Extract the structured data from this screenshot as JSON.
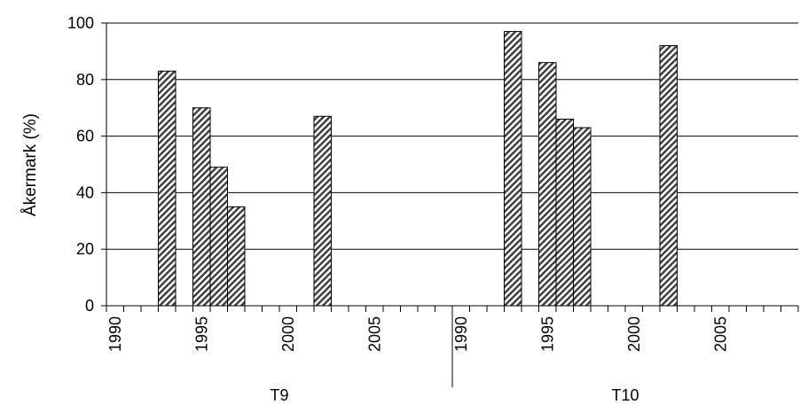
{
  "chart_data": {
    "type": "bar",
    "ylabel": "Åkermark (%)",
    "ylim": [
      0,
      100
    ],
    "yticks": [
      0,
      20,
      40,
      60,
      80,
      100
    ],
    "grid": "horizontal",
    "bar_pattern": "diagonal-hatch",
    "colors": {
      "bar_fill": "#ffffff",
      "hatch": "#3a3a3a",
      "outline": "#000000",
      "grid": "#000000"
    },
    "x_year_range": [
      1990,
      2009
    ],
    "year_tick_labels": [
      "1990",
      "1995",
      "2000",
      "2005"
    ],
    "groups": [
      {
        "name": "T9",
        "bars": [
          {
            "year": 1993,
            "value": 83
          },
          {
            "year": 1995,
            "value": 70
          },
          {
            "year": 1996,
            "value": 49
          },
          {
            "year": 1997,
            "value": 35
          },
          {
            "year": 2002,
            "value": 67
          }
        ]
      },
      {
        "name": "T10",
        "bars": [
          {
            "year": 1993,
            "value": 97
          },
          {
            "year": 1995,
            "value": 86
          },
          {
            "year": 1996,
            "value": 66
          },
          {
            "year": 1997,
            "value": 63
          },
          {
            "year": 2002,
            "value": 92
          }
        ]
      }
    ]
  }
}
